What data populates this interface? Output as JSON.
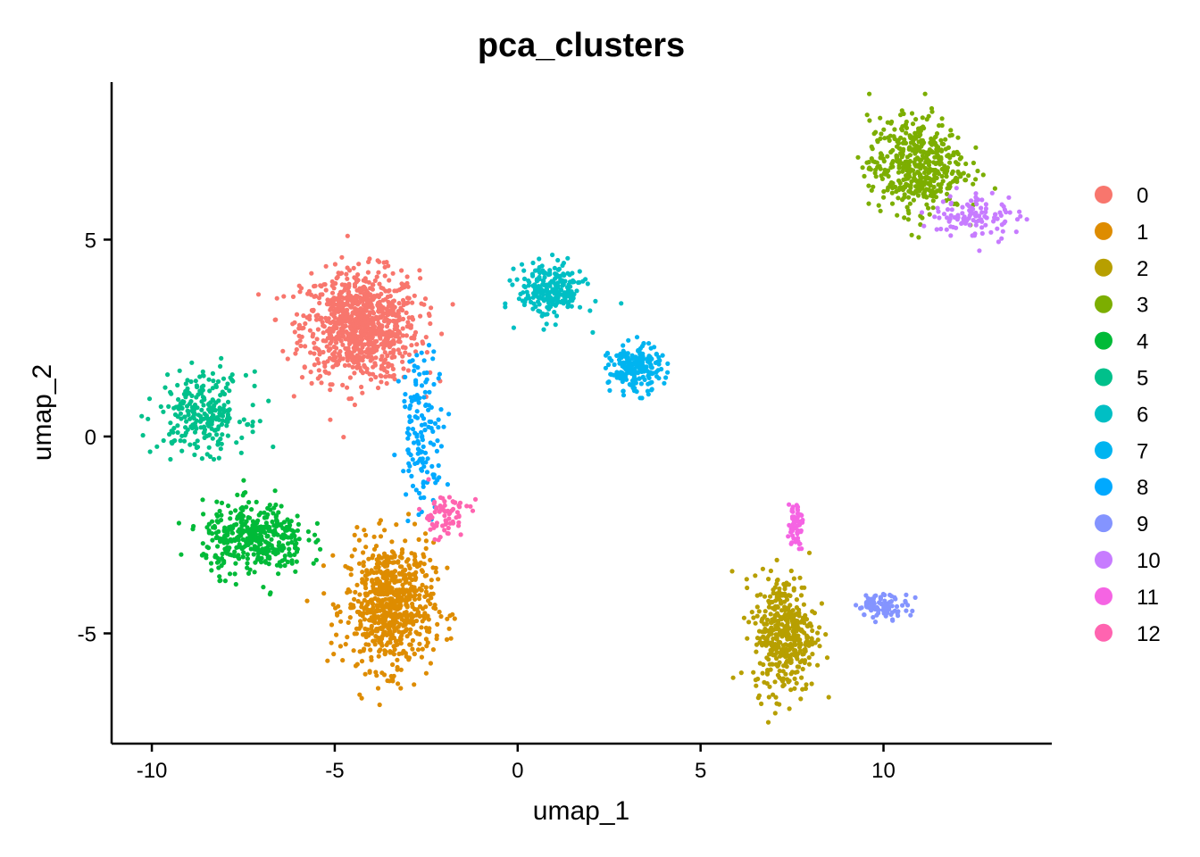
{
  "chart_data": {
    "type": "scatter",
    "title": "pca_clusters",
    "xlabel": "umap_1",
    "ylabel": "umap_2",
    "xlim": [
      -11.1,
      14.6
    ],
    "ylim": [
      -7.8,
      9.0
    ],
    "xticks": [
      "-10",
      "-5",
      "0",
      "5",
      "10"
    ],
    "yticks": [
      "-5",
      "0",
      "5"
    ],
    "grid": false,
    "legend_position": "right",
    "series": [
      {
        "name": "0",
        "color": "#F8766D",
        "center": [
          -4.3,
          2.8
        ],
        "spread": [
          1.6,
          1.4
        ],
        "n": 900
      },
      {
        "name": "1",
        "color": "#DE8C00",
        "center": [
          -3.5,
          -4.3
        ],
        "spread": [
          1.2,
          1.6
        ],
        "n": 700
      },
      {
        "name": "2",
        "color": "#B79F00",
        "center": [
          7.3,
          -5.0
        ],
        "spread": [
          0.85,
          1.5
        ],
        "n": 420
      },
      {
        "name": "3",
        "color": "#7CAE00",
        "center": [
          10.9,
          6.9
        ],
        "spread": [
          1.3,
          1.2
        ],
        "n": 480
      },
      {
        "name": "4",
        "color": "#00BA38",
        "center": [
          -7.2,
          -2.6
        ],
        "spread": [
          1.4,
          0.9
        ],
        "n": 400
      },
      {
        "name": "5",
        "color": "#00C08B",
        "center": [
          -8.6,
          0.6
        ],
        "spread": [
          1.2,
          1.0
        ],
        "n": 260
      },
      {
        "name": "6",
        "color": "#00BFC4",
        "center": [
          0.9,
          3.7
        ],
        "spread": [
          0.9,
          0.7
        ],
        "n": 240
      },
      {
        "name": "7",
        "color": "#00B4F0",
        "center": [
          3.2,
          1.7
        ],
        "spread": [
          0.7,
          0.6
        ],
        "n": 200
      },
      {
        "name": "8",
        "color": "#00A9FF",
        "center": [
          -2.6,
          0.2
        ],
        "spread": [
          0.6,
          2.0
        ],
        "n": 150
      },
      {
        "name": "9",
        "color": "#8494FF",
        "center": [
          10.0,
          -4.3
        ],
        "spread": [
          0.7,
          0.3
        ],
        "n": 90
      },
      {
        "name": "10",
        "color": "#C77CFF",
        "center": [
          12.5,
          5.6
        ],
        "spread": [
          1.2,
          0.6
        ],
        "n": 110
      },
      {
        "name": "11",
        "color": "#F564E3",
        "center": [
          7.6,
          -2.2
        ],
        "spread": [
          0.2,
          0.6
        ],
        "n": 60
      },
      {
        "name": "12",
        "color": "#FF64B0",
        "center": [
          -2.0,
          -2.0
        ],
        "spread": [
          0.7,
          0.6
        ],
        "n": 70
      }
    ]
  }
}
